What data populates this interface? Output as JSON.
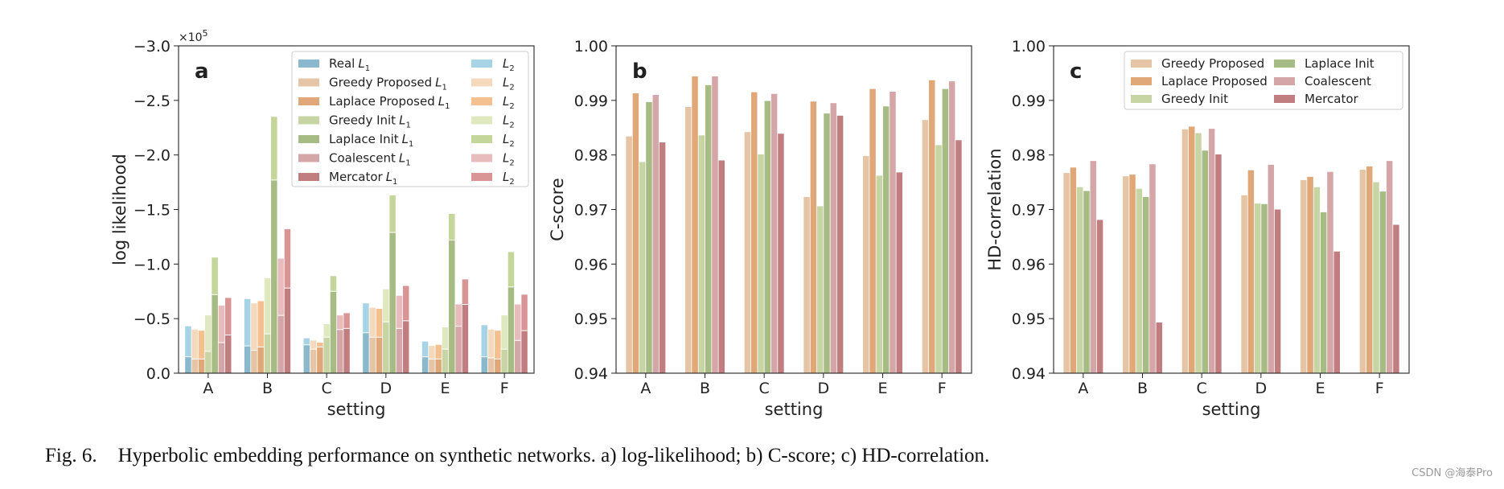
{
  "caption": {
    "figure_label": "Fig. 6.",
    "text": "Hyperbolic embedding performance on synthetic networks. a) log-likelihood; b) C-score; c) HD-correlation."
  },
  "watermark": "CSDN @海泰Pro",
  "colors": {
    "Real": "#8ab8cd",
    "Greedy Proposed": "#e5c5a6",
    "Laplace Proposed": "#e0a878",
    "Greedy Init": "#c7d4a4",
    "Laplace Init": "#a7bb84",
    "Coalescent": "#d4a6a8",
    "Mercator": "#c07e80",
    "Real_L2": "#a6d3e5",
    "Greedy Proposed_L2": "#f5d9bc",
    "Laplace Proposed_L2": "#f4c090",
    "Greedy Init_L2": "#dfe8bf",
    "Laplace Init_L2": "#c4d69a",
    "Coalescent_L2": "#e8bcbd",
    "Mercator_L2": "#d99596"
  },
  "chart_data": [
    {
      "panel": "a",
      "type": "bar",
      "stacked": true,
      "title": "",
      "xlabel": "setting",
      "ylabel": "log likelihood",
      "exponent_label": "×10",
      "exponent_power": "5",
      "ylim": [
        0,
        -3.0
      ],
      "yticks": [
        "−3.0",
        "−2.5",
        "−2.0",
        "−1.5",
        "−1.0",
        "−0.5",
        "0.0"
      ],
      "yticks_values": [
        -3.0,
        -2.5,
        -2.0,
        -1.5,
        -1.0,
        -0.5,
        0.0
      ],
      "categories": [
        "A",
        "B",
        "C",
        "D",
        "E",
        "F"
      ],
      "legend_loc": "top-right",
      "series": [
        {
          "name": "Real",
          "label_l1": "Real",
          "label_l2": "",
          "l1": [
            -0.15,
            -0.25,
            -0.26,
            -0.37,
            -0.15,
            -0.15
          ],
          "total": [
            -0.43,
            -0.68,
            -0.32,
            -0.64,
            -0.29,
            -0.44
          ]
        },
        {
          "name": "Greedy Proposed",
          "label_l1": "Greedy Proposed",
          "label_l2": "",
          "l1": [
            -0.13,
            -0.21,
            -0.22,
            -0.33,
            -0.13,
            -0.14
          ],
          "total": [
            -0.4,
            -0.64,
            -0.3,
            -0.6,
            -0.25,
            -0.4
          ]
        },
        {
          "name": "Laplace Proposed",
          "label_l1": "Laplace Proposed",
          "label_l2": "",
          "l1": [
            -0.13,
            -0.24,
            -0.24,
            -0.33,
            -0.13,
            -0.13
          ],
          "total": [
            -0.39,
            -0.66,
            -0.28,
            -0.59,
            -0.26,
            -0.39
          ]
        },
        {
          "name": "Greedy Init",
          "label_l1": "Greedy Init",
          "label_l2": "",
          "l1": [
            -0.2,
            -0.36,
            -0.33,
            -0.47,
            -0.22,
            -0.22
          ],
          "total": [
            -0.53,
            -0.87,
            -0.45,
            -0.77,
            -0.42,
            -0.53
          ]
        },
        {
          "name": "Laplace Init",
          "label_l1": "Laplace Init",
          "label_l2": "",
          "l1": [
            -0.72,
            -1.77,
            -0.75,
            -1.29,
            -1.22,
            -0.79
          ],
          "total": [
            -1.06,
            -2.35,
            -0.89,
            -1.63,
            -1.46,
            -1.11
          ]
        },
        {
          "name": "Coalescent",
          "label_l1": "Coalescent",
          "label_l2": "",
          "l1": [
            -0.28,
            -0.53,
            -0.4,
            -0.41,
            -0.43,
            -0.3
          ],
          "total": [
            -0.62,
            -1.05,
            -0.53,
            -0.71,
            -0.63,
            -0.63
          ]
        },
        {
          "name": "Mercator",
          "label_l1": "Mercator",
          "label_l2": "",
          "l1": [
            -0.35,
            -0.78,
            -0.41,
            -0.48,
            -0.63,
            -0.39
          ],
          "total": [
            -0.69,
            -1.32,
            -0.55,
            -0.8,
            -0.86,
            -0.72
          ]
        }
      ],
      "legend_l1_suffix": "L",
      "legend_l1_sub": "1",
      "legend_l2_suffix": "L",
      "legend_l2_sub": "2"
    },
    {
      "panel": "b",
      "type": "bar",
      "title": "",
      "xlabel": "setting",
      "ylabel": "C-score",
      "ylim": [
        0.94,
        1.0
      ],
      "yticks": [
        "1.00",
        "0.99",
        "0.98",
        "0.97",
        "0.96",
        "0.95",
        "0.94"
      ],
      "yticks_values": [
        1.0,
        0.99,
        0.98,
        0.97,
        0.96,
        0.95,
        0.94
      ],
      "categories": [
        "A",
        "B",
        "C",
        "D",
        "E",
        "F"
      ],
      "series": [
        {
          "name": "Greedy Proposed",
          "values": [
            0.9834,
            0.9888,
            0.9842,
            0.9723,
            0.9798,
            0.9864
          ]
        },
        {
          "name": "Laplace Proposed",
          "values": [
            0.9913,
            0.9944,
            0.9915,
            0.9898,
            0.9921,
            0.9937
          ]
        },
        {
          "name": "Greedy Init",
          "values": [
            0.9787,
            0.9836,
            0.9801,
            0.9706,
            0.9762,
            0.9818
          ]
        },
        {
          "name": "Laplace Init",
          "values": [
            0.9897,
            0.9928,
            0.9899,
            0.9876,
            0.9889,
            0.9921
          ]
        },
        {
          "name": "Coalescent",
          "values": [
            0.991,
            0.9944,
            0.9912,
            0.9895,
            0.9916,
            0.9935
          ]
        },
        {
          "name": "Mercator",
          "values": [
            0.9823,
            0.979,
            0.9839,
            0.9872,
            0.9768,
            0.9827
          ]
        }
      ]
    },
    {
      "panel": "c",
      "type": "bar",
      "title": "",
      "xlabel": "setting",
      "ylabel": "HD-correlation",
      "ylim": [
        0.94,
        1.0
      ],
      "yticks": [
        "1.00",
        "0.99",
        "0.98",
        "0.97",
        "0.96",
        "0.95",
        "0.94"
      ],
      "yticks_values": [
        1.0,
        0.99,
        0.98,
        0.97,
        0.96,
        0.95,
        0.94
      ],
      "categories": [
        "A",
        "B",
        "C",
        "D",
        "E",
        "F"
      ],
      "legend_loc": "top-right",
      "series": [
        {
          "name": "Greedy Proposed",
          "values": [
            0.9767,
            0.9761,
            0.9847,
            0.9726,
            0.9754,
            0.9773
          ]
        },
        {
          "name": "Laplace Proposed",
          "values": [
            0.9777,
            0.9764,
            0.9852,
            0.9772,
            0.976,
            0.9779
          ]
        },
        {
          "name": "Greedy Init",
          "values": [
            0.9741,
            0.9738,
            0.984,
            0.9711,
            0.9741,
            0.975
          ]
        },
        {
          "name": "Laplace Init",
          "values": [
            0.9734,
            0.9723,
            0.9808,
            0.971,
            0.9695,
            0.9733
          ]
        },
        {
          "name": "Coalescent",
          "values": [
            0.9789,
            0.9783,
            0.9848,
            0.9782,
            0.9769,
            0.9789
          ]
        },
        {
          "name": "Mercator",
          "values": [
            0.9681,
            0.9493,
            0.9801,
            0.97,
            0.9623,
            0.9672
          ]
        }
      ]
    }
  ]
}
